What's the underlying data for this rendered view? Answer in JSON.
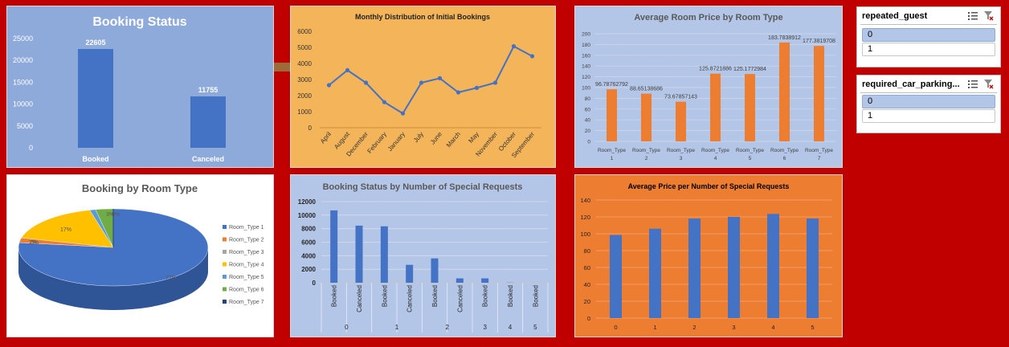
{
  "colors": {
    "background": "#c00000",
    "booking_status_bg": "#8eaadb",
    "monthly_bg": "#f4b55a",
    "avg_price_bg": "#b4c6e7",
    "special_req_bg": "#b4c6e7",
    "avg_special_bg": "#ed7d31",
    "bar_blue": "#4472c4",
    "bar_orange": "#ed7d31"
  },
  "slicers": [
    {
      "title": "repeated_guest",
      "items": [
        "0",
        "1"
      ],
      "selected": 0,
      "icons": [
        "multi-select-icon",
        "clear-filter-icon"
      ]
    },
    {
      "title": "required_car_parking...",
      "items": [
        "0",
        "1"
      ],
      "selected": 0,
      "icons": [
        "multi-select-icon",
        "clear-filter-icon"
      ]
    }
  ],
  "chart_data": [
    {
      "id": "booking_status",
      "type": "bar",
      "title": "Booking Status",
      "categories": [
        "Booked",
        "Canceled"
      ],
      "values": [
        22605,
        11755
      ],
      "data_labels": [
        "22605",
        "11755"
      ],
      "ylim": [
        0,
        25000
      ],
      "yticks": [
        "0",
        "5000",
        "10000",
        "15000",
        "20000",
        "25000"
      ],
      "grid": false
    },
    {
      "id": "monthly_distribution",
      "type": "line",
      "title": "Monthly Distribution of Initial Bookings",
      "categories": [
        "April",
        "August",
        "December",
        "February",
        "January",
        "July",
        "June",
        "March",
        "May",
        "November",
        "October",
        "September"
      ],
      "values": [
        2650,
        3580,
        2800,
        1590,
        890,
        2800,
        3080,
        2200,
        2480,
        2800,
        5070,
        4450
      ],
      "ylim": [
        0,
        6000
      ],
      "yticks": [
        "0",
        "1000",
        "2000",
        "3000",
        "4000",
        "5000",
        "6000"
      ],
      "grid": false
    },
    {
      "id": "avg_room_price",
      "type": "bar",
      "title": "Average Room Price by Room Type",
      "categories": [
        [
          "Room_Type",
          "1"
        ],
        [
          "Room_Type",
          "2"
        ],
        [
          "Room_Type",
          "3"
        ],
        [
          "Room_Type",
          "4"
        ],
        [
          "Room_Type",
          "5"
        ],
        [
          "Room_Type",
          "6"
        ],
        [
          "Room_Type",
          "7"
        ]
      ],
      "values": [
        96.78762792,
        88.65138686,
        73.67857143,
        125.8721886,
        125.1772984,
        183.7838912,
        177.3819708
      ],
      "data_labels": [
        "96.78762792",
        "88.65138686",
        "73.67857143",
        "125.8721886",
        "125.1772984",
        "183.7838912",
        "177.3819708"
      ],
      "ylim": [
        0,
        200
      ],
      "yticks": [
        "0",
        "20",
        "40",
        "60",
        "80",
        "100",
        "120",
        "140",
        "160",
        "180",
        "200"
      ],
      "grid": true
    },
    {
      "id": "booking_by_room_type",
      "type": "pie",
      "title": "Booking by Room Type",
      "categories": [
        "Room_Type 1",
        "Room_Type 2",
        "Room_Type 3",
        "Room_Type 4",
        "Room_Type 5",
        "Room_Type 6",
        "Room_Type 7"
      ],
      "values": [
        77,
        2,
        0,
        17,
        1,
        3,
        0
      ],
      "data_labels": [
        "77%",
        "2%",
        "0%",
        "17%",
        "1%",
        "3%",
        "0%"
      ],
      "colors": [
        "#4472c4",
        "#ed7d31",
        "#a5a5a5",
        "#ffc000",
        "#5b9bd5",
        "#70ad47",
        "#264478"
      ],
      "legend": "right"
    },
    {
      "id": "status_by_special_requests",
      "type": "bar",
      "title": "Booking Status by Number of Special Requests",
      "groups": [
        {
          "label": "0",
          "items": [
            {
              "status": "Booked",
              "value": 10700
            },
            {
              "status": "Canceled",
              "value": 8450
            }
          ]
        },
        {
          "label": "1",
          "items": [
            {
              "status": "Booked",
              "value": 8350
            },
            {
              "status": "Canceled",
              "value": 2650
            }
          ]
        },
        {
          "label": "2",
          "items": [
            {
              "status": "Booked",
              "value": 3600
            },
            {
              "status": "Canceled",
              "value": 650
            }
          ]
        },
        {
          "label": "3",
          "items": [
            {
              "status": "Booked",
              "value": 650
            }
          ]
        },
        {
          "label": "4",
          "items": [
            {
              "status": "Booked",
              "value": 30
            }
          ]
        },
        {
          "label": "5",
          "items": [
            {
              "status": "Booked",
              "value": 8
            }
          ]
        }
      ],
      "ylim": [
        0,
        12000
      ],
      "yticks": [
        "0",
        "2000",
        "4000",
        "6000",
        "8000",
        "10000",
        "12000"
      ],
      "grid": true
    },
    {
      "id": "avg_price_special_requests",
      "type": "bar",
      "title": "Average Price per Number of Special Requests",
      "categories": [
        "0",
        "1",
        "2",
        "3",
        "4",
        "5"
      ],
      "values": [
        98.5,
        106,
        118,
        120,
        123.5,
        118
      ],
      "ylim": [
        0,
        140
      ],
      "yticks": [
        "0",
        "20",
        "40",
        "60",
        "80",
        "100",
        "120",
        "140"
      ],
      "grid": true
    }
  ]
}
